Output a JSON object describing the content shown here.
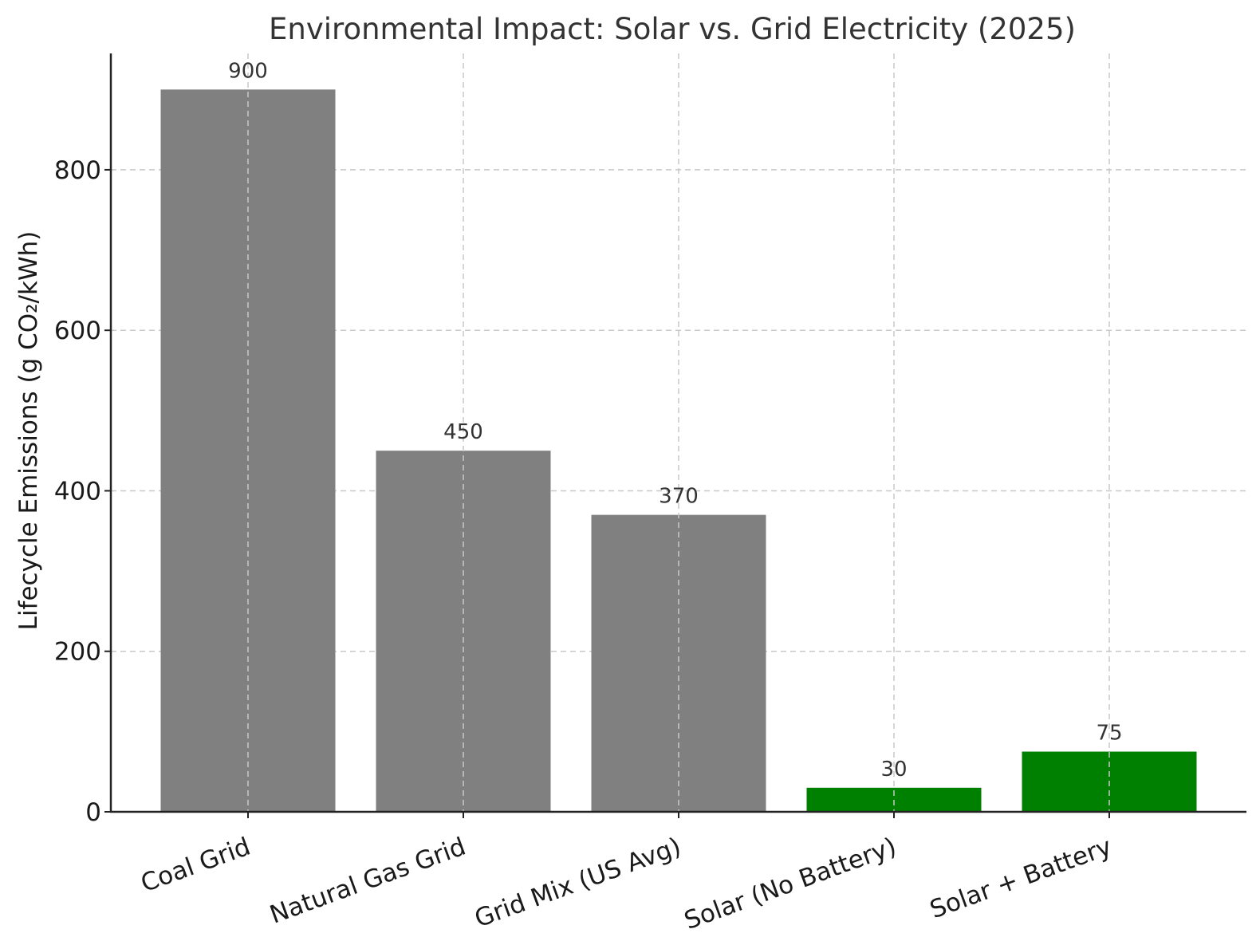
{
  "chart_data": {
    "type": "bar",
    "title": "Environmental Impact: Solar vs. Grid Electricity (2025)",
    "xlabel": "",
    "ylabel": "Lifecycle Emissions (g CO₂/kWh)",
    "categories": [
      "Coal Grid",
      "Natural Gas Grid",
      "Grid Mix (US Avg)",
      "Solar (No Battery)",
      "Solar + Battery"
    ],
    "values": [
      900,
      450,
      370,
      30,
      75
    ],
    "data_labels": [
      "900",
      "450",
      "370",
      "30",
      "75"
    ],
    "colors": [
      "#808080",
      "#808080",
      "#808080",
      "#008000",
      "#008000"
    ],
    "ylim": [
      0,
      945
    ],
    "yticks": [
      0,
      200,
      400,
      600,
      800
    ],
    "ytick_labels": [
      "0",
      "200",
      "400",
      "600",
      "800"
    ],
    "grid": true,
    "xtick_rotation": -20
  }
}
